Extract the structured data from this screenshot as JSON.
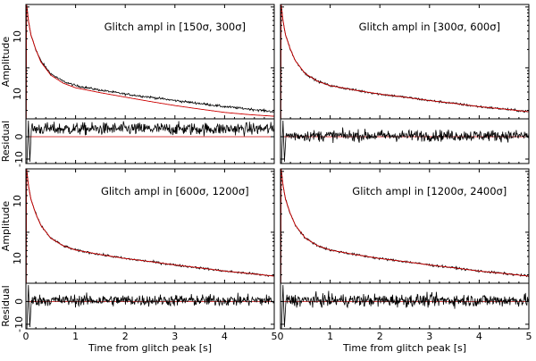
{
  "figure": {
    "xlabel": "Time from glitch peak [s]",
    "amplitude_ylabel": "Amplitude",
    "residual_ylabel": "Residual",
    "x_ticks": [
      "0",
      "1",
      "2",
      "3",
      "4",
      "5"
    ]
  },
  "chart_data": [
    {
      "type": "line",
      "title": "Glitch ampl in [150σ, 300σ]",
      "xlabel": "",
      "ylabel": "Amplitude",
      "x_range": [
        0,
        5
      ],
      "ytick_labels": [
        "10",
        "10"
      ],
      "series": [
        {
          "color": "#000000",
          "x": [
            0.02,
            0.05,
            0.1,
            0.2,
            0.3,
            0.5,
            0.75,
            1,
            1.5,
            2,
            2.5,
            3,
            3.5,
            4,
            4.5,
            5
          ],
          "values": [
            100,
            60,
            35,
            20,
            13,
            8,
            6,
            5.1,
            4.3,
            3.7,
            3.3,
            2.9,
            2.6,
            2.3,
            2.1,
            1.9
          ]
        },
        {
          "color": "#cc0000",
          "x": [
            0.02,
            0.05,
            0.1,
            0.2,
            0.3,
            0.5,
            0.75,
            1,
            1.5,
            2,
            2.5,
            3,
            3.5,
            4,
            4.5,
            5
          ],
          "values": [
            100,
            60,
            35,
            20,
            12.5,
            7.6,
            5.6,
            4.7,
            3.9,
            3.3,
            2.8,
            2.4,
            2.1,
            1.85,
            1.7,
            1.6
          ]
        }
      ],
      "residual": {
        "ytick_labels": [
          "0",
          "-10"
        ],
        "ylim": [
          -12,
          8
        ],
        "mean": 3.5,
        "noise": 2.0
      }
    },
    {
      "type": "line",
      "title": "Glitch ampl in [300σ, 600σ]",
      "xlabel": "",
      "ylabel": "",
      "x_range": [
        0,
        5
      ],
      "ytick_labels": [],
      "series": [
        {
          "color": "#000000",
          "x": [
            0.02,
            0.05,
            0.1,
            0.2,
            0.3,
            0.5,
            0.75,
            1,
            1.5,
            2,
            2.5,
            3,
            3.5,
            4,
            4.5,
            5
          ],
          "values": [
            100,
            60,
            35,
            20,
            13,
            8,
            6,
            5.1,
            4.3,
            3.7,
            3.3,
            2.9,
            2.6,
            2.3,
            2.1,
            1.9
          ]
        },
        {
          "color": "#cc0000",
          "x": [
            0.02,
            0.05,
            0.1,
            0.2,
            0.3,
            0.5,
            0.75,
            1,
            1.5,
            2,
            2.5,
            3,
            3.5,
            4,
            4.5,
            5
          ],
          "values": [
            100,
            60,
            35,
            20,
            13,
            8,
            6,
            5.1,
            4.3,
            3.7,
            3.3,
            2.9,
            2.6,
            2.3,
            2.1,
            1.9
          ]
        }
      ],
      "residual": {
        "ytick_labels": [],
        "ylim": [
          -12,
          8
        ],
        "mean": 0.5,
        "noise": 1.8
      }
    },
    {
      "type": "line",
      "title": "Glitch ampl in [600σ, 1200σ]",
      "xlabel": "Time from glitch peak [s]",
      "ylabel": "Amplitude",
      "x_range": [
        0,
        5
      ],
      "ytick_labels": [
        "10",
        "10"
      ],
      "series": [
        {
          "color": "#000000",
          "x": [
            0.02,
            0.05,
            0.1,
            0.2,
            0.3,
            0.5,
            0.75,
            1,
            1.5,
            2,
            2.5,
            3,
            3.5,
            4,
            4.5,
            5
          ],
          "values": [
            100,
            60,
            35,
            20,
            13,
            8,
            6,
            5.1,
            4.3,
            3.7,
            3.3,
            2.9,
            2.6,
            2.3,
            2.1,
            1.9
          ]
        },
        {
          "color": "#cc0000",
          "x": [
            0.02,
            0.05,
            0.1,
            0.2,
            0.3,
            0.5,
            0.75,
            1,
            1.5,
            2,
            2.5,
            3,
            3.5,
            4,
            4.5,
            5
          ],
          "values": [
            100,
            60,
            35,
            20,
            13,
            8,
            6,
            5.1,
            4.3,
            3.7,
            3.3,
            2.9,
            2.6,
            2.3,
            2.1,
            1.9
          ]
        }
      ],
      "residual": {
        "ytick_labels": [
          "0",
          "-10"
        ],
        "ylim": [
          -12,
          8
        ],
        "mean": 0.5,
        "noise": 1.8
      }
    },
    {
      "type": "line",
      "title": "Glitch ampl in [1200σ, 2400σ]",
      "xlabel": "Time from glitch peak [s]",
      "ylabel": "",
      "x_range": [
        0,
        5
      ],
      "ytick_labels": [],
      "series": [
        {
          "color": "#000000",
          "x": [
            0.02,
            0.05,
            0.1,
            0.2,
            0.3,
            0.5,
            0.75,
            1,
            1.5,
            2,
            2.5,
            3,
            3.5,
            4,
            4.5,
            5
          ],
          "values": [
            100,
            60,
            35,
            20,
            13,
            8,
            6,
            5.1,
            4.3,
            3.7,
            3.3,
            2.9,
            2.6,
            2.3,
            2.1,
            1.9
          ]
        },
        {
          "color": "#cc0000",
          "x": [
            0.02,
            0.05,
            0.1,
            0.2,
            0.3,
            0.5,
            0.75,
            1,
            1.5,
            2,
            2.5,
            3,
            3.5,
            4,
            4.5,
            5
          ],
          "values": [
            100,
            60,
            35,
            20,
            13,
            8,
            6,
            5.1,
            4.3,
            3.7,
            3.3,
            2.9,
            2.6,
            2.3,
            2.1,
            1.9
          ]
        }
      ],
      "residual": {
        "ytick_labels": [],
        "ylim": [
          -12,
          8
        ],
        "mean": 0.5,
        "noise": 2.0
      }
    }
  ]
}
